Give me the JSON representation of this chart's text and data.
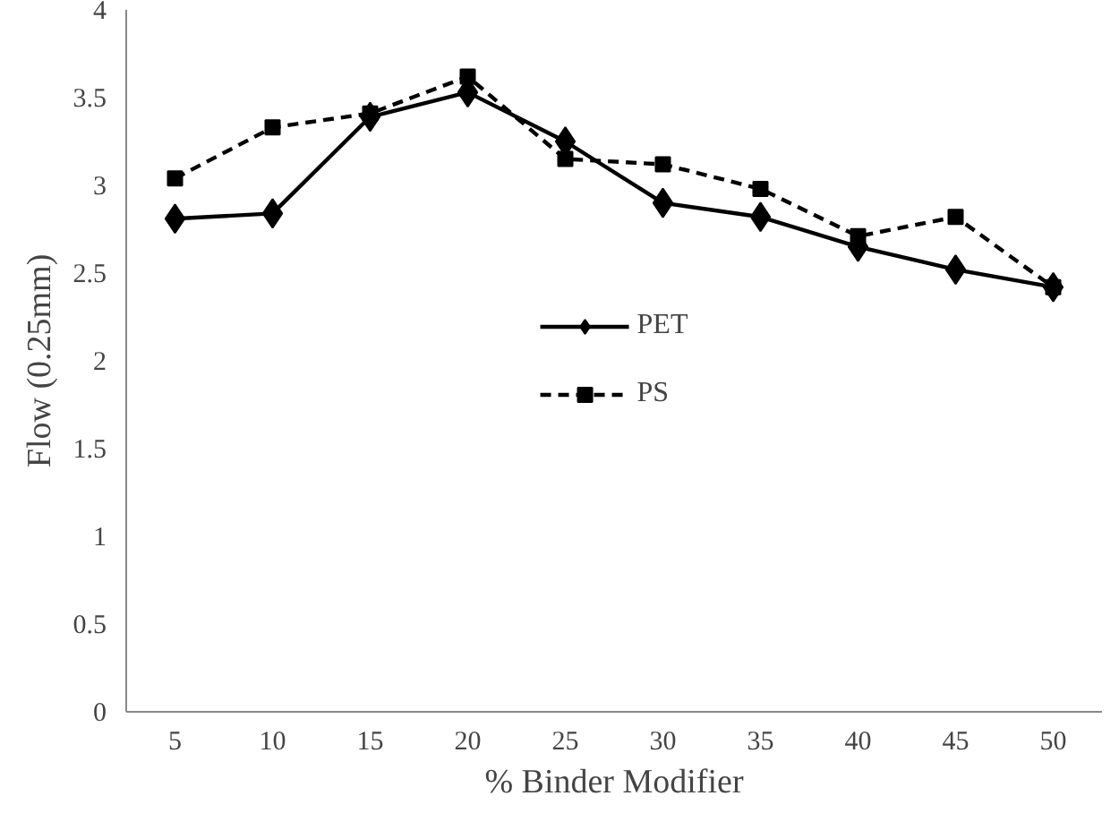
{
  "chart_data": {
    "type": "line",
    "xlabel": "% Binder Modifier",
    "ylabel": "Flow (0.25mm)",
    "categories": [
      "5",
      "10",
      "15",
      "20",
      "25",
      "30",
      "35",
      "40",
      "45",
      "50"
    ],
    "ylim": [
      0,
      4
    ],
    "yticks": [
      0,
      0.5,
      1,
      1.5,
      2,
      2.5,
      3,
      3.5,
      4
    ],
    "grid": false,
    "legend": "center",
    "series": [
      {
        "name": "PET",
        "color": "#000000",
        "marker": "diamond",
        "line_style": "solid",
        "values": [
          2.81,
          2.84,
          3.39,
          3.53,
          3.25,
          2.9,
          2.82,
          2.65,
          2.52,
          2.42
        ]
      },
      {
        "name": "PS",
        "color": "#000000",
        "marker": "square",
        "line_style": "dashed",
        "values": [
          3.04,
          3.33,
          3.41,
          3.62,
          3.15,
          3.12,
          2.98,
          2.71,
          2.82,
          2.42
        ]
      }
    ]
  }
}
